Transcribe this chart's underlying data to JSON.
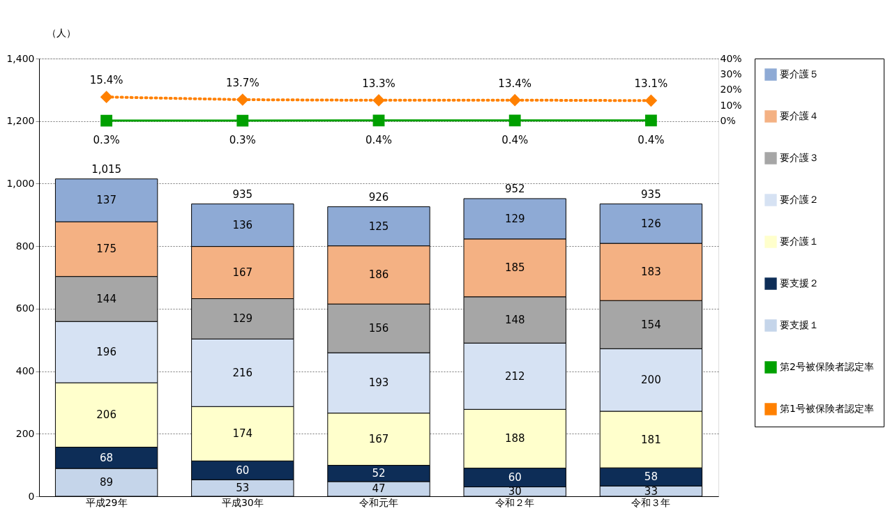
{
  "chart_data": {
    "type": "bar",
    "stacked": true,
    "ylabel": "（人）",
    "categories": [
      "平成29年",
      "平成30年",
      "令和元年",
      "令和２年",
      "令和３年"
    ],
    "series": [
      {
        "name": "要支援１",
        "color": "#c5d5ea",
        "values": [
          89,
          53,
          47,
          30,
          33
        ]
      },
      {
        "name": "要支援２",
        "color": "#0d2d57",
        "values": [
          68,
          60,
          52,
          60,
          58
        ]
      },
      {
        "name": "要介護１",
        "color": "#ffffcc",
        "values": [
          206,
          174,
          167,
          188,
          181
        ]
      },
      {
        "name": "要介護２",
        "color": "#d6e2f3",
        "values": [
          196,
          216,
          193,
          212,
          200
        ]
      },
      {
        "name": "要介護３",
        "color": "#a6a6a6",
        "values": [
          144,
          129,
          156,
          148,
          154
        ]
      },
      {
        "name": "要介護４",
        "color": "#f4b183",
        "values": [
          175,
          167,
          186,
          185,
          183
        ]
      },
      {
        "name": "要介護５",
        "color": "#8eaad5",
        "values": [
          137,
          136,
          125,
          129,
          126
        ]
      },
      {
        "name": "第2号被保険者認定率",
        "type": "line",
        "axis": "y2",
        "color": "#00a000",
        "marker": "square",
        "line_style": "solid",
        "values": [
          0.3,
          0.3,
          0.4,
          0.4,
          0.4
        ],
        "value_labels": [
          "0.3%",
          "0.3%",
          "0.4%",
          "0.4%",
          "0.4%"
        ]
      },
      {
        "name": "第1号被保険者認定率",
        "type": "line",
        "axis": "y2",
        "color": "#ff8000",
        "marker": "diamond",
        "line_style": "dotted",
        "values": [
          15.4,
          13.7,
          13.3,
          13.4,
          13.1
        ],
        "value_labels": [
          "15.4%",
          "13.7%",
          "13.3%",
          "13.4%",
          "13.1%"
        ]
      }
    ],
    "totals": [
      "1,015",
      "935",
      "926",
      "952",
      "935"
    ],
    "data_labels": true,
    "ylim": [
      0,
      1400
    ],
    "yticks": [
      0,
      200,
      400,
      600,
      800,
      {
        "value": 1000,
        "label": "1,000"
      },
      {
        "value": 1200,
        "label": "1,200"
      },
      {
        "value": 1400,
        "label": "1,400"
      }
    ],
    "y2lim": [
      -240,
      40
    ],
    "y2ticks": [
      {
        "value": 0,
        "label": "0%"
      },
      {
        "value": 10,
        "label": "10%"
      },
      {
        "value": 20,
        "label": "20%"
      },
      {
        "value": 30,
        "label": "30%"
      },
      {
        "value": 40,
        "label": "40%"
      }
    ],
    "grid": "y",
    "legend": "right"
  }
}
